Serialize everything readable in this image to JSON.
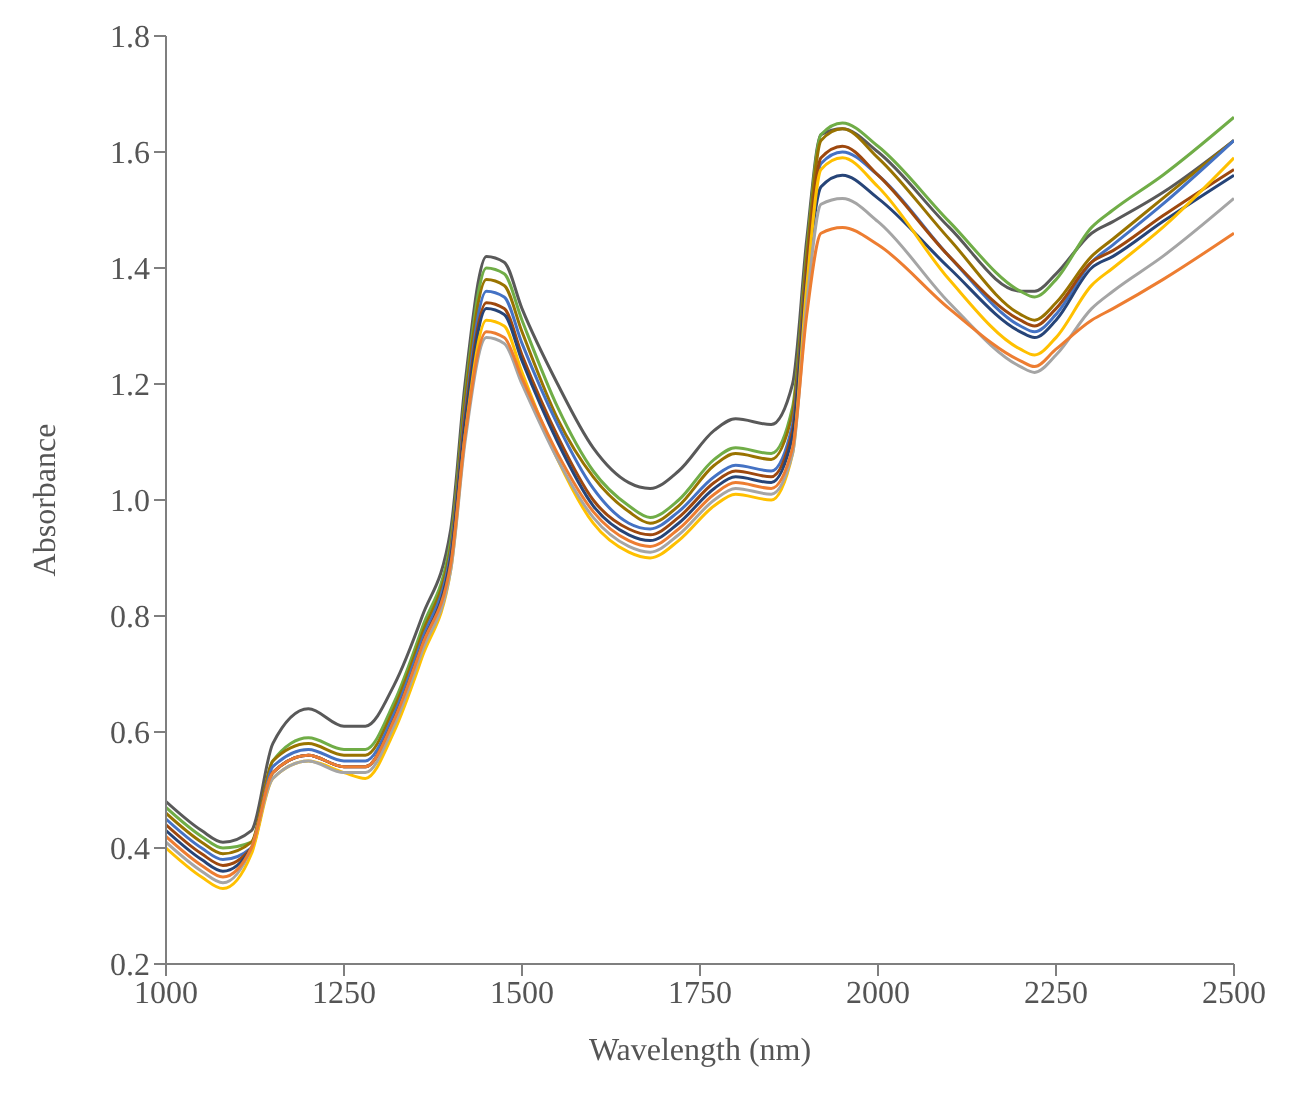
{
  "chart_data": {
    "type": "line",
    "xlabel": "Wavelength (nm)",
    "ylabel": "Absorbance",
    "x": [
      1000,
      1050,
      1080,
      1120,
      1150,
      1200,
      1250,
      1280,
      1320,
      1360,
      1400,
      1420,
      1450,
      1475,
      1500,
      1550,
      1600,
      1650,
      1680,
      1720,
      1770,
      1800,
      1850,
      1880,
      1900,
      1920,
      1950,
      2000,
      2100,
      2200,
      2220,
      2250,
      2300,
      2330,
      2400,
      2500
    ],
    "series": [
      {
        "color": "#595959",
        "values": [
          0.48,
          0.43,
          0.41,
          0.43,
          0.58,
          0.64,
          0.61,
          0.61,
          0.68,
          0.8,
          0.95,
          1.2,
          1.42,
          1.41,
          1.33,
          1.2,
          1.09,
          1.03,
          1.02,
          1.05,
          1.12,
          1.14,
          1.13,
          1.2,
          1.45,
          1.63,
          1.64,
          1.6,
          1.47,
          1.36,
          1.36,
          1.39,
          1.46,
          1.48,
          1.53,
          1.62
        ]
      },
      {
        "color": "#70ad47",
        "values": [
          0.47,
          0.42,
          0.4,
          0.41,
          0.55,
          0.59,
          0.57,
          0.57,
          0.65,
          0.78,
          0.93,
          1.18,
          1.4,
          1.39,
          1.31,
          1.16,
          1.05,
          0.99,
          0.97,
          1.0,
          1.07,
          1.09,
          1.08,
          1.16,
          1.43,
          1.63,
          1.65,
          1.61,
          1.48,
          1.36,
          1.35,
          1.38,
          1.47,
          1.5,
          1.56,
          1.66
        ]
      },
      {
        "color": "#997300",
        "values": [
          0.46,
          0.41,
          0.39,
          0.41,
          0.55,
          0.58,
          0.56,
          0.56,
          0.64,
          0.77,
          0.92,
          1.17,
          1.38,
          1.37,
          1.29,
          1.14,
          1.04,
          0.98,
          0.96,
          0.99,
          1.06,
          1.08,
          1.07,
          1.15,
          1.42,
          1.62,
          1.64,
          1.59,
          1.45,
          1.32,
          1.31,
          1.34,
          1.42,
          1.45,
          1.52,
          1.62
        ]
      },
      {
        "color": "#4472c4",
        "values": [
          0.45,
          0.4,
          0.38,
          0.4,
          0.54,
          0.57,
          0.55,
          0.55,
          0.63,
          0.76,
          0.91,
          1.15,
          1.36,
          1.35,
          1.27,
          1.13,
          1.02,
          0.96,
          0.95,
          0.98,
          1.04,
          1.06,
          1.05,
          1.13,
          1.4,
          1.58,
          1.6,
          1.56,
          1.42,
          1.3,
          1.29,
          1.32,
          1.41,
          1.44,
          1.51,
          1.62
        ]
      },
      {
        "color": "#9e480e",
        "values": [
          0.44,
          0.39,
          0.37,
          0.4,
          0.53,
          0.56,
          0.54,
          0.54,
          0.62,
          0.75,
          0.9,
          1.14,
          1.34,
          1.33,
          1.25,
          1.11,
          1.0,
          0.95,
          0.94,
          0.97,
          1.03,
          1.05,
          1.04,
          1.12,
          1.4,
          1.59,
          1.61,
          1.56,
          1.42,
          1.31,
          1.3,
          1.33,
          1.41,
          1.43,
          1.49,
          1.57
        ]
      },
      {
        "color": "#264478",
        "values": [
          0.43,
          0.38,
          0.36,
          0.4,
          0.53,
          0.56,
          0.54,
          0.54,
          0.62,
          0.75,
          0.9,
          1.13,
          1.33,
          1.32,
          1.24,
          1.1,
          0.99,
          0.94,
          0.93,
          0.96,
          1.02,
          1.04,
          1.03,
          1.11,
          1.38,
          1.54,
          1.56,
          1.52,
          1.4,
          1.29,
          1.28,
          1.31,
          1.4,
          1.42,
          1.48,
          1.56
        ]
      },
      {
        "color": "#ffc000",
        "values": [
          0.4,
          0.35,
          0.33,
          0.39,
          0.52,
          0.55,
          0.53,
          0.52,
          0.6,
          0.73,
          0.88,
          1.11,
          1.31,
          1.3,
          1.22,
          1.07,
          0.96,
          0.91,
          0.9,
          0.93,
          0.99,
          1.01,
          1.0,
          1.08,
          1.37,
          1.57,
          1.59,
          1.54,
          1.38,
          1.26,
          1.25,
          1.28,
          1.37,
          1.4,
          1.47,
          1.59
        ]
      },
      {
        "color": "#a5a5a5",
        "values": [
          0.41,
          0.36,
          0.34,
          0.4,
          0.52,
          0.55,
          0.53,
          0.53,
          0.61,
          0.74,
          0.88,
          1.1,
          1.28,
          1.27,
          1.2,
          1.07,
          0.97,
          0.92,
          0.91,
          0.94,
          1.0,
          1.02,
          1.01,
          1.08,
          1.34,
          1.51,
          1.52,
          1.48,
          1.34,
          1.23,
          1.22,
          1.25,
          1.33,
          1.36,
          1.42,
          1.52
        ]
      },
      {
        "color": "#ed7d31",
        "values": [
          0.42,
          0.37,
          0.35,
          0.4,
          0.53,
          0.56,
          0.54,
          0.54,
          0.62,
          0.75,
          0.89,
          1.11,
          1.29,
          1.28,
          1.21,
          1.08,
          0.98,
          0.93,
          0.92,
          0.95,
          1.01,
          1.03,
          1.02,
          1.09,
          1.32,
          1.46,
          1.47,
          1.44,
          1.33,
          1.24,
          1.23,
          1.26,
          1.31,
          1.33,
          1.38,
          1.46
        ]
      }
    ],
    "xlim": [
      1000,
      2500
    ],
    "xticks": [
      1000,
      1250,
      1500,
      1750,
      2000,
      2250,
      2500
    ],
    "ylim": [
      0.2,
      1.8
    ],
    "yticks": [
      0.2,
      0.4,
      0.6,
      0.8,
      {
        "value": 1,
        "label": "1.0"
      },
      1.2,
      1.4,
      1.6,
      1.8
    ],
    "grid": false,
    "legend": false
  }
}
